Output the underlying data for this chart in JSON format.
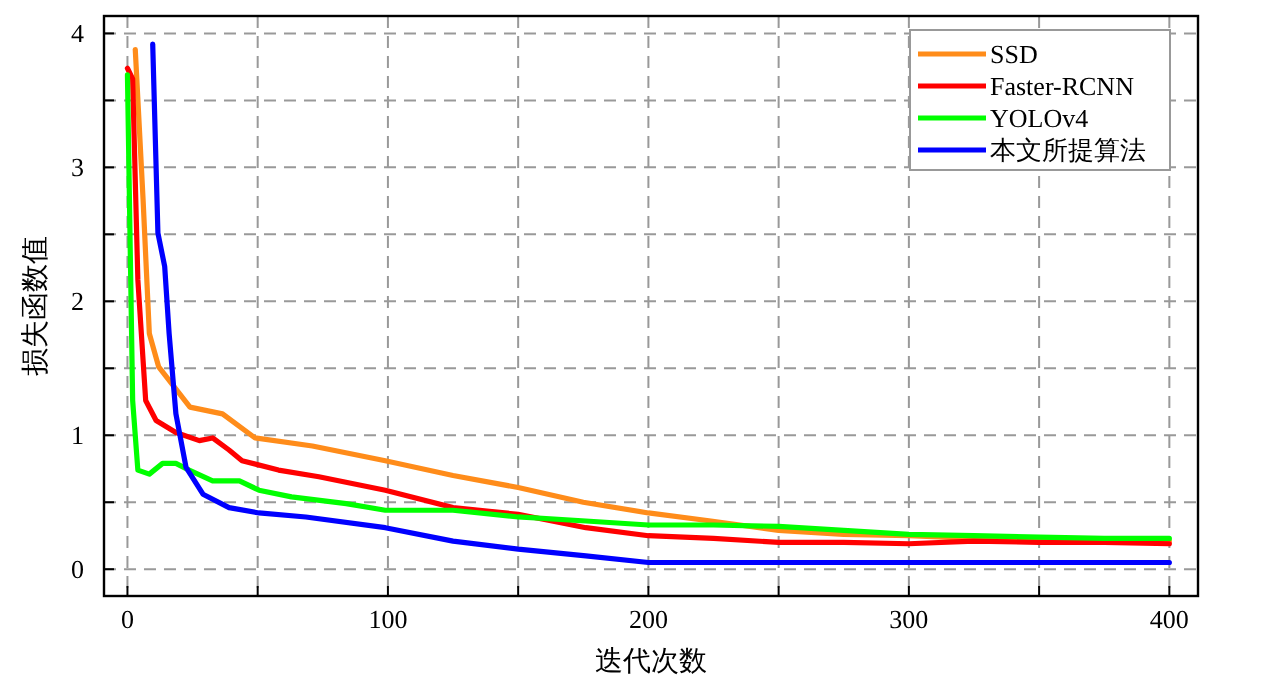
{
  "chart_data": {
    "type": "line",
    "xlabel": "迭代次数",
    "ylabel": "损失函数值",
    "xlim": [
      -9,
      411
    ],
    "ylim": [
      -0.2,
      4.13
    ],
    "xticks": [
      0,
      {
        "value": 50,
        "label": null
      },
      100,
      {
        "value": 150,
        "label": null
      },
      200,
      {
        "value": 250,
        "label": null
      },
      300,
      {
        "value": 350,
        "label": null
      },
      400
    ],
    "yticks": [
      0,
      {
        "value": 0.5,
        "label": null
      },
      1,
      {
        "value": 1.5,
        "label": null
      },
      2,
      {
        "value": 2.5,
        "label": null
      },
      3,
      {
        "value": 3.5,
        "label": null
      },
      4
    ],
    "grid": true,
    "legend": "top right",
    "line_style": "solid",
    "marker": "none",
    "series": [
      {
        "name": "SSD",
        "color": "#ff8c1a",
        "x": [
          3,
          6,
          8.4,
          12,
          24,
          36.5,
          49,
          71,
          99,
          125,
          150,
          175,
          200,
          224,
          250,
          275,
          300,
          325,
          350,
          400
        ],
        "values": [
          3.88,
          2.76,
          1.76,
          1.51,
          1.21,
          1.16,
          0.98,
          0.92,
          0.81,
          0.7,
          0.61,
          0.5,
          0.42,
          0.36,
          0.29,
          0.26,
          0.25,
          0.23,
          0.22,
          0.21
        ]
      },
      {
        "name": "Faster-RCNN",
        "color": "#ff0000",
        "x": [
          0,
          2,
          4,
          7,
          11,
          18.6,
          27.6,
          32.7,
          39,
          44,
          58,
          73.5,
          99,
          125,
          150,
          176,
          200,
          225,
          250,
          275,
          300,
          325,
          350,
          375,
          400
        ],
        "values": [
          3.74,
          3.66,
          2.16,
          1.26,
          1.11,
          1.02,
          0.96,
          0.98,
          0.89,
          0.81,
          0.74,
          0.69,
          0.59,
          0.46,
          0.41,
          0.31,
          0.25,
          0.23,
          0.2,
          0.2,
          0.19,
          0.21,
          0.2,
          0.2,
          0.19
        ]
      },
      {
        "name": "YOLOv4",
        "color": "#00ff00",
        "x": [
          0,
          2,
          4,
          8.4,
          13.5,
          18.6,
          23.7,
          32.7,
          43,
          50.5,
          63,
          84,
          99,
          125,
          150,
          176,
          200,
          225,
          250,
          275,
          300,
          325,
          350,
          375,
          400
        ],
        "values": [
          3.69,
          1.26,
          0.74,
          0.71,
          0.79,
          0.79,
          0.74,
          0.66,
          0.66,
          0.59,
          0.54,
          0.49,
          0.44,
          0.44,
          0.39,
          0.36,
          0.33,
          0.33,
          0.32,
          0.29,
          0.26,
          0.25,
          0.24,
          0.23,
          0.23
        ]
      },
      {
        "name": "本文所提算法",
        "color": "#0000ff",
        "x": [
          9.7,
          11.7,
          14.3,
          16,
          18.6,
          22.5,
          29,
          39,
          50.5,
          68.5,
          99,
          125,
          150,
          176,
          200,
          250,
          300,
          350,
          400
        ],
        "values": [
          3.92,
          2.51,
          2.26,
          1.76,
          1.16,
          0.76,
          0.56,
          0.46,
          0.42,
          0.39,
          0.31,
          0.21,
          0.15,
          0.1,
          0.05,
          0.05,
          0.05,
          0.05,
          0.05
        ]
      }
    ]
  }
}
